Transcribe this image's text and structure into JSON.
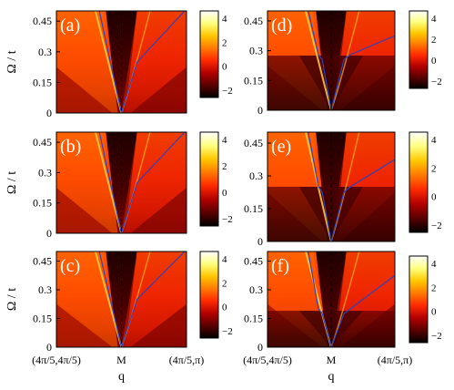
{
  "figure": {
    "panel_tags": [
      "(a)",
      "(b)",
      "(c)",
      "(d)",
      "(e)",
      "(f)"
    ],
    "y_axis_label": "Ω / t",
    "x_axis_label": "q",
    "x_tick_labels": [
      "(4π/5,4π/5)",
      "M",
      "(4π/5,π)"
    ],
    "y_tick_labels": [
      "0",
      "0.15",
      "0.3",
      "0.45"
    ],
    "colorbar_tick_labels": [
      "4",
      "2",
      "0",
      "−2"
    ],
    "colormap": [
      "#000000",
      "#5a0000",
      "#b30000",
      "#ff2a00",
      "#ff7a00",
      "#ffc800",
      "#ffff80",
      "#ffffff"
    ]
  },
  "chart_data": {
    "type": "heatmap",
    "panels": [
      "(a)",
      "(b)",
      "(c)",
      "(d)",
      "(e)",
      "(f)"
    ],
    "x_ticks": [
      "(4π/5,4π/5)",
      "M",
      "(4π/5,π)"
    ],
    "ylabel": "Ω / t",
    "xlabel": "q",
    "ylim": [
      0,
      0.5
    ],
    "y_ticks": [
      0,
      0.15,
      0.3,
      0.45
    ],
    "colorbar_range": [
      -2,
      4
    ],
    "colorbar_ticks": [
      -2,
      0,
      2,
      4
    ]
  }
}
